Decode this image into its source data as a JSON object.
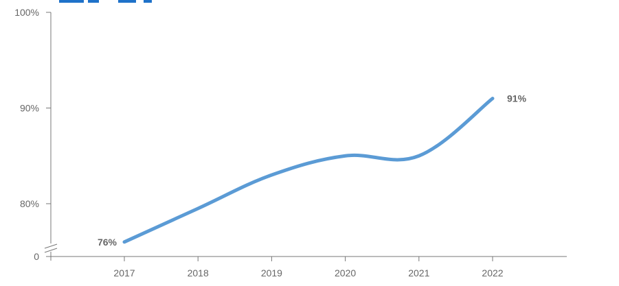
{
  "chart_data": {
    "type": "line",
    "x_categories": [
      "2017",
      "2018",
      "2019",
      "2020",
      "2021",
      "2022"
    ],
    "series": [
      {
        "values": [
          76,
          79.5,
          83,
          85,
          85,
          91
        ],
        "color": "#5B9BD5"
      }
    ],
    "data_labels": [
      {
        "category": "2017",
        "value": 76,
        "text": "76%"
      },
      {
        "category": "2022",
        "value": 91,
        "text": "91%"
      }
    ],
    "y_ticks": [
      {
        "value": 80,
        "label": "80%"
      },
      {
        "value": 90,
        "label": "90%"
      },
      {
        "value": 100,
        "label": "100%"
      }
    ],
    "y_axis_break": {
      "label": "0",
      "from": 0,
      "to": 75
    },
    "ylim": [
      75,
      100
    ],
    "grid": false,
    "legend": "none"
  }
}
